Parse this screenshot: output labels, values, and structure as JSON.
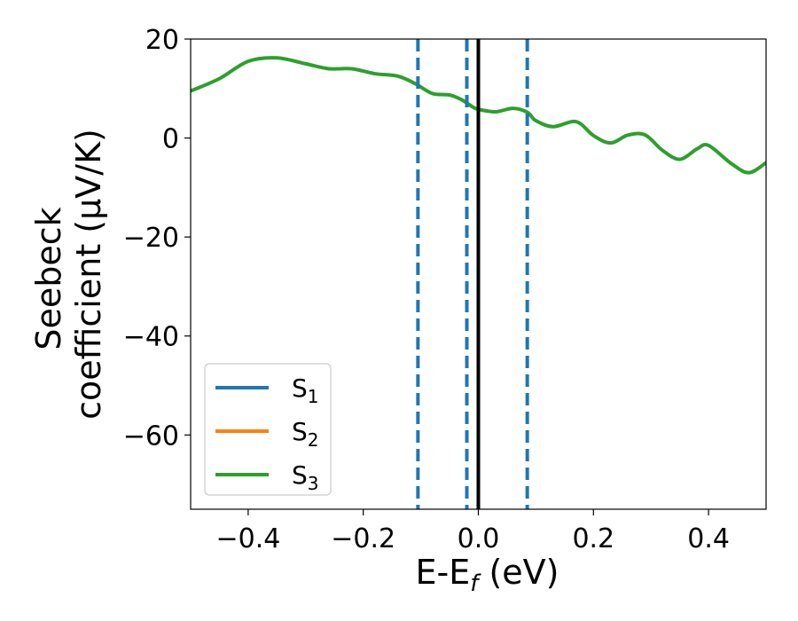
{
  "chart_data": {
    "type": "line",
    "xlabel": "E-E",
    "xlabel_subscript": "f",
    "xlabel_unit": "(eV)",
    "ylabel_line1": "Seebeck",
    "ylabel_line2": "coefficient  (μV/K)",
    "xlim": [
      -0.5,
      0.5
    ],
    "ylim": [
      -75,
      20
    ],
    "xticks": [
      -0.4,
      -0.2,
      0.0,
      0.2,
      0.4
    ],
    "xtick_labels": [
      "−0.4",
      "−0.2",
      "0.0",
      "0.2",
      "0.4"
    ],
    "yticks": [
      -60,
      -40,
      -20,
      0,
      20
    ],
    "ytick_labels": [
      "−60",
      "−40",
      "−20",
      "0",
      "20"
    ],
    "grid": false,
    "legend_position": "lower-left",
    "series": [
      {
        "name": "S",
        "subscript": "1",
        "color": "#1f77b4",
        "x": [],
        "y": []
      },
      {
        "name": "S",
        "subscript": "2",
        "color": "#ff7f0e",
        "x": [],
        "y": []
      },
      {
        "name": "S",
        "subscript": "3",
        "color": "#2ca02c",
        "x": [
          -0.5,
          -0.45,
          -0.4,
          -0.35,
          -0.3,
          -0.26,
          -0.22,
          -0.18,
          -0.14,
          -0.11,
          -0.08,
          -0.05,
          -0.03,
          -0.01,
          0.0,
          0.03,
          0.06,
          0.085,
          0.1,
          0.13,
          0.17,
          0.2,
          0.23,
          0.26,
          0.29,
          0.32,
          0.35,
          0.38,
          0.4,
          0.44,
          0.47,
          0.5
        ],
        "y": [
          9.5,
          12,
          15.5,
          16.2,
          15,
          14,
          14,
          13,
          12.5,
          11,
          9,
          8.7,
          7.8,
          6.3,
          5.8,
          5.3,
          6,
          5.2,
          3.5,
          2.3,
          3.3,
          0.5,
          -1,
          0.6,
          0.6,
          -2.5,
          -4.3,
          -2.2,
          -1.5,
          -5.2,
          -7,
          -5
        ]
      }
    ],
    "vertical_lines": [
      {
        "x": -0.105,
        "color": "#1f77b4",
        "style": "dashed"
      },
      {
        "x": -0.02,
        "color": "#1f77b4",
        "style": "dashed"
      },
      {
        "x": 0.085,
        "color": "#1f77b4",
        "style": "dashed"
      },
      {
        "x": 0.0,
        "color": "#000000",
        "style": "solid"
      }
    ]
  }
}
